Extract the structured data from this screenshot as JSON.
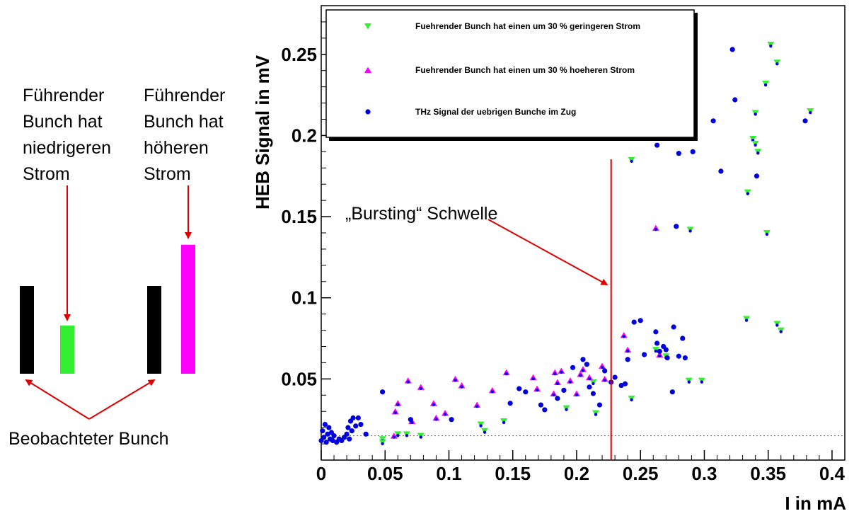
{
  "colors": {
    "lower_current": "#33ee33",
    "higher_current": "#ff00ff",
    "other_bunches": "#0000dd",
    "observed_bunch": "#000000",
    "annotation": "#dd0000",
    "threshold_line": "#dd0000"
  },
  "diagram": {
    "label_lower": [
      "Führender",
      "Bunch hat",
      "niedrigeren",
      "Strom"
    ],
    "label_higher": [
      "Führender",
      "Bunch hat",
      "höheren",
      "Strom"
    ],
    "label_observed": "Beobachteter Bunch",
    "bars_relative_height": {
      "observed": 1.0,
      "lower": 0.55,
      "higher": 1.47
    }
  },
  "chart_data": {
    "type": "scatter",
    "title": "",
    "xlabel": "I in mA",
    "ylabel": "HEB Signal in mV",
    "xlim": [
      0,
      0.41
    ],
    "ylim": [
      0,
      0.28
    ],
    "xticks": [
      0,
      0.05,
      0.1,
      0.15,
      0.2,
      0.25,
      0.3,
      0.35,
      0.4
    ],
    "xtick_labels": [
      "0",
      "0.05",
      "0.1",
      "0.15",
      "0.2",
      "0.25",
      "0.3",
      "0.35",
      "0.4"
    ],
    "yticks": [
      0.05,
      0.1,
      0.15,
      0.2,
      0.25
    ],
    "ytick_labels": [
      "0.05",
      "0.1",
      "0.15",
      "0.2",
      "0.25"
    ],
    "grid": false,
    "legend_position": "top-left",
    "baseline_dotted_y": 0.015,
    "threshold": {
      "x": 0.227,
      "label": "„Bursting“ Schwelle"
    },
    "series": [
      {
        "name": "Fuehrender Bunch hat einen um 30 % geringeren Strom",
        "marker": "triangle-down",
        "points": [
          [
            0.048,
            0.013
          ],
          [
            0.048,
            0.011
          ],
          [
            0.06,
            0.016
          ],
          [
            0.067,
            0.016
          ],
          [
            0.078,
            0.015
          ],
          [
            0.125,
            0.022
          ],
          [
            0.128,
            0.018
          ],
          [
            0.143,
            0.024
          ],
          [
            0.192,
            0.032
          ],
          [
            0.213,
            0.048
          ],
          [
            0.215,
            0.029
          ],
          [
            0.243,
            0.038
          ],
          [
            0.262,
            0.068
          ],
          [
            0.27,
            0.064
          ],
          [
            0.288,
            0.049
          ],
          [
            0.298,
            0.049
          ],
          [
            0.333,
            0.087
          ],
          [
            0.357,
            0.084
          ],
          [
            0.36,
            0.08
          ],
          [
            0.243,
            0.185
          ],
          [
            0.289,
            0.142
          ],
          [
            0.334,
            0.165
          ],
          [
            0.338,
            0.198
          ],
          [
            0.34,
            0.195
          ],
          [
            0.342,
            0.19
          ],
          [
            0.349,
            0.14
          ],
          [
            0.34,
            0.214
          ],
          [
            0.348,
            0.232
          ],
          [
            0.352,
            0.256
          ],
          [
            0.357,
            0.245
          ],
          [
            0.383,
            0.215
          ]
        ]
      },
      {
        "name": "Fuehrender Bunch hat einen um 30 % hoeheren Strom",
        "marker": "triangle-up",
        "points": [
          [
            0.057,
            0.015
          ],
          [
            0.058,
            0.03
          ],
          [
            0.06,
            0.035
          ],
          [
            0.068,
            0.049
          ],
          [
            0.071,
            0.024
          ],
          [
            0.078,
            0.045
          ],
          [
            0.088,
            0.035
          ],
          [
            0.09,
            0.026
          ],
          [
            0.097,
            0.029
          ],
          [
            0.105,
            0.05
          ],
          [
            0.11,
            0.046
          ],
          [
            0.122,
            0.034
          ],
          [
            0.134,
            0.043
          ],
          [
            0.145,
            0.054
          ],
          [
            0.166,
            0.051
          ],
          [
            0.169,
            0.044
          ],
          [
            0.182,
            0.041
          ],
          [
            0.183,
            0.054
          ],
          [
            0.185,
            0.048
          ],
          [
            0.188,
            0.055
          ],
          [
            0.195,
            0.049
          ],
          [
            0.2,
            0.041
          ],
          [
            0.203,
            0.053
          ],
          [
            0.205,
            0.056
          ],
          [
            0.21,
            0.051
          ],
          [
            0.22,
            0.058
          ],
          [
            0.222,
            0.05
          ],
          [
            0.237,
            0.077
          ],
          [
            0.24,
            0.068
          ],
          [
            0.262,
            0.143
          ],
          [
            0.265,
            0.065
          ]
        ]
      },
      {
        "name": "THz Signal der uebrigen Bunche im Zug",
        "marker": "circle",
        "points": [
          [
            0.0,
            0.012
          ],
          [
            0.001,
            0.018
          ],
          [
            0.002,
            0.014
          ],
          [
            0.003,
            0.022
          ],
          [
            0.004,
            0.011
          ],
          [
            0.005,
            0.016
          ],
          [
            0.006,
            0.02
          ],
          [
            0.007,
            0.013
          ],
          [
            0.008,
            0.017
          ],
          [
            0.009,
            0.012
          ],
          [
            0.01,
            0.015
          ],
          [
            0.012,
            0.011
          ],
          [
            0.014,
            0.013
          ],
          [
            0.016,
            0.012
          ],
          [
            0.018,
            0.014
          ],
          [
            0.02,
            0.016
          ],
          [
            0.021,
            0.02
          ],
          [
            0.022,
            0.013
          ],
          [
            0.023,
            0.024
          ],
          [
            0.024,
            0.018
          ],
          [
            0.025,
            0.026
          ],
          [
            0.027,
            0.021
          ],
          [
            0.029,
            0.026
          ],
          [
            0.031,
            0.022
          ],
          [
            0.035,
            0.016
          ],
          [
            0.048,
            0.042
          ],
          [
            0.07,
            0.025
          ],
          [
            0.102,
            0.025
          ],
          [
            0.148,
            0.035
          ],
          [
            0.155,
            0.044
          ],
          [
            0.16,
            0.042
          ],
          [
            0.172,
            0.034
          ],
          [
            0.175,
            0.031
          ],
          [
            0.185,
            0.038
          ],
          [
            0.19,
            0.043
          ],
          [
            0.197,
            0.057
          ],
          [
            0.205,
            0.062
          ],
          [
            0.208,
            0.059
          ],
          [
            0.21,
            0.045
          ],
          [
            0.213,
            0.041
          ],
          [
            0.218,
            0.034
          ],
          [
            0.222,
            0.055
          ],
          [
            0.227,
            0.048
          ],
          [
            0.23,
            0.051
          ],
          [
            0.235,
            0.046
          ],
          [
            0.238,
            0.047
          ],
          [
            0.24,
            0.062
          ],
          [
            0.245,
            0.085
          ],
          [
            0.25,
            0.086
          ],
          [
            0.253,
            0.065
          ],
          [
            0.262,
            0.079
          ],
          [
            0.263,
            0.072
          ],
          [
            0.265,
            0.067
          ],
          [
            0.268,
            0.07
          ],
          [
            0.27,
            0.068
          ],
          [
            0.271,
            0.063
          ],
          [
            0.275,
            0.042
          ],
          [
            0.276,
            0.082
          ],
          [
            0.28,
            0.064
          ],
          [
            0.283,
            0.075
          ],
          [
            0.285,
            0.063
          ],
          [
            0.263,
            0.194
          ],
          [
            0.278,
            0.144
          ],
          [
            0.28,
            0.189
          ],
          [
            0.291,
            0.19
          ],
          [
            0.307,
            0.209
          ],
          [
            0.313,
            0.178
          ],
          [
            0.322,
            0.253
          ],
          [
            0.324,
            0.222
          ],
          [
            0.341,
            0.175
          ],
          [
            0.379,
            0.209
          ],
          [
            0.29,
            0.221
          ]
        ]
      }
    ]
  }
}
